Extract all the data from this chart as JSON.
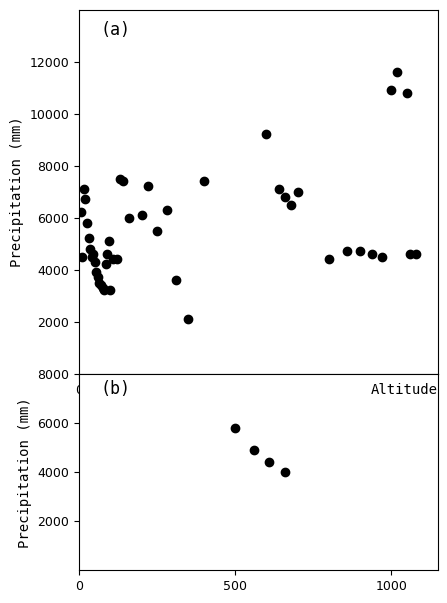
{
  "xlabel": "Altitude",
  "ylabel_a": "Precipitation (mm)",
  "ylabel_b": "Precipitation (mm)",
  "label_a": "(a)",
  "label_b": "(b)",
  "panel_a": {
    "x": [
      5,
      10,
      15,
      20,
      25,
      30,
      35,
      40,
      45,
      50,
      55,
      60,
      65,
      70,
      75,
      80,
      85,
      90,
      95,
      100,
      110,
      120,
      130,
      140,
      160,
      200,
      220,
      250,
      280,
      310,
      350,
      400,
      600,
      640,
      660,
      680,
      700,
      800,
      860,
      900,
      940,
      970,
      1000,
      1020,
      1050,
      1060,
      1080
    ],
    "y": [
      6200,
      4500,
      7100,
      6700,
      5800,
      5200,
      4800,
      4500,
      4600,
      4300,
      3900,
      3700,
      3500,
      3400,
      3300,
      3200,
      4200,
      4600,
      5100,
      3200,
      4400,
      4400,
      7500,
      7400,
      6000,
      6100,
      7200,
      5500,
      6300,
      3600,
      2100,
      7400,
      9200,
      7100,
      6800,
      6500,
      7000,
      4400,
      4700,
      4700,
      4600,
      4500,
      10900,
      11600,
      10800,
      4600,
      4600
    ],
    "ylim": [
      0,
      14000
    ],
    "yticks": [
      2000,
      4000,
      6000,
      8000,
      10000,
      12000
    ],
    "xticks": [
      0,
      500,
      1000
    ],
    "xlim": [
      0,
      1150
    ]
  },
  "panel_b": {
    "x": [
      500,
      560,
      610,
      660
    ],
    "y": [
      5800,
      4900,
      4400,
      4000
    ],
    "ylim": [
      0,
      8000
    ],
    "yticks": [
      2000,
      4000,
      6000,
      8000
    ],
    "xticks": [
      0,
      500,
      1000
    ],
    "xlim": [
      0,
      1150
    ]
  },
  "marker_color": "#000000",
  "marker_size": 36,
  "bg_color": "#ffffff",
  "font_family": "monospace",
  "font_size_tick": 9,
  "font_size_label": 10,
  "font_size_annot": 12
}
